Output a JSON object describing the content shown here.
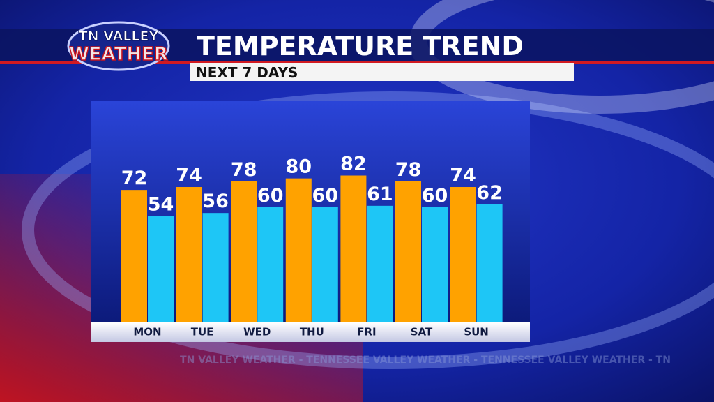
{
  "logo": {
    "line1": "TN VALLEY",
    "line2": "WEATHER"
  },
  "watermark": "TN VALLEY WEATHER - TENNESSEE VALLEY WEATHER - TENNESSEE VALLEY WEATHER - TN",
  "chart_data": {
    "type": "bar",
    "title": "TEMPERATURE TREND",
    "subtitle": "NEXT 7 DAYS",
    "categories": [
      "MON",
      "TUE",
      "WED",
      "THU",
      "FRI",
      "SAT",
      "SUN"
    ],
    "series": [
      {
        "color": "#ffa200",
        "values": [
          72,
          74,
          78,
          80,
          82,
          78,
          74
        ]
      },
      {
        "color": "#1ec6f6",
        "values": [
          54,
          56,
          60,
          60,
          61,
          60,
          62
        ]
      }
    ],
    "ylim": [
      -20,
      90
    ]
  }
}
